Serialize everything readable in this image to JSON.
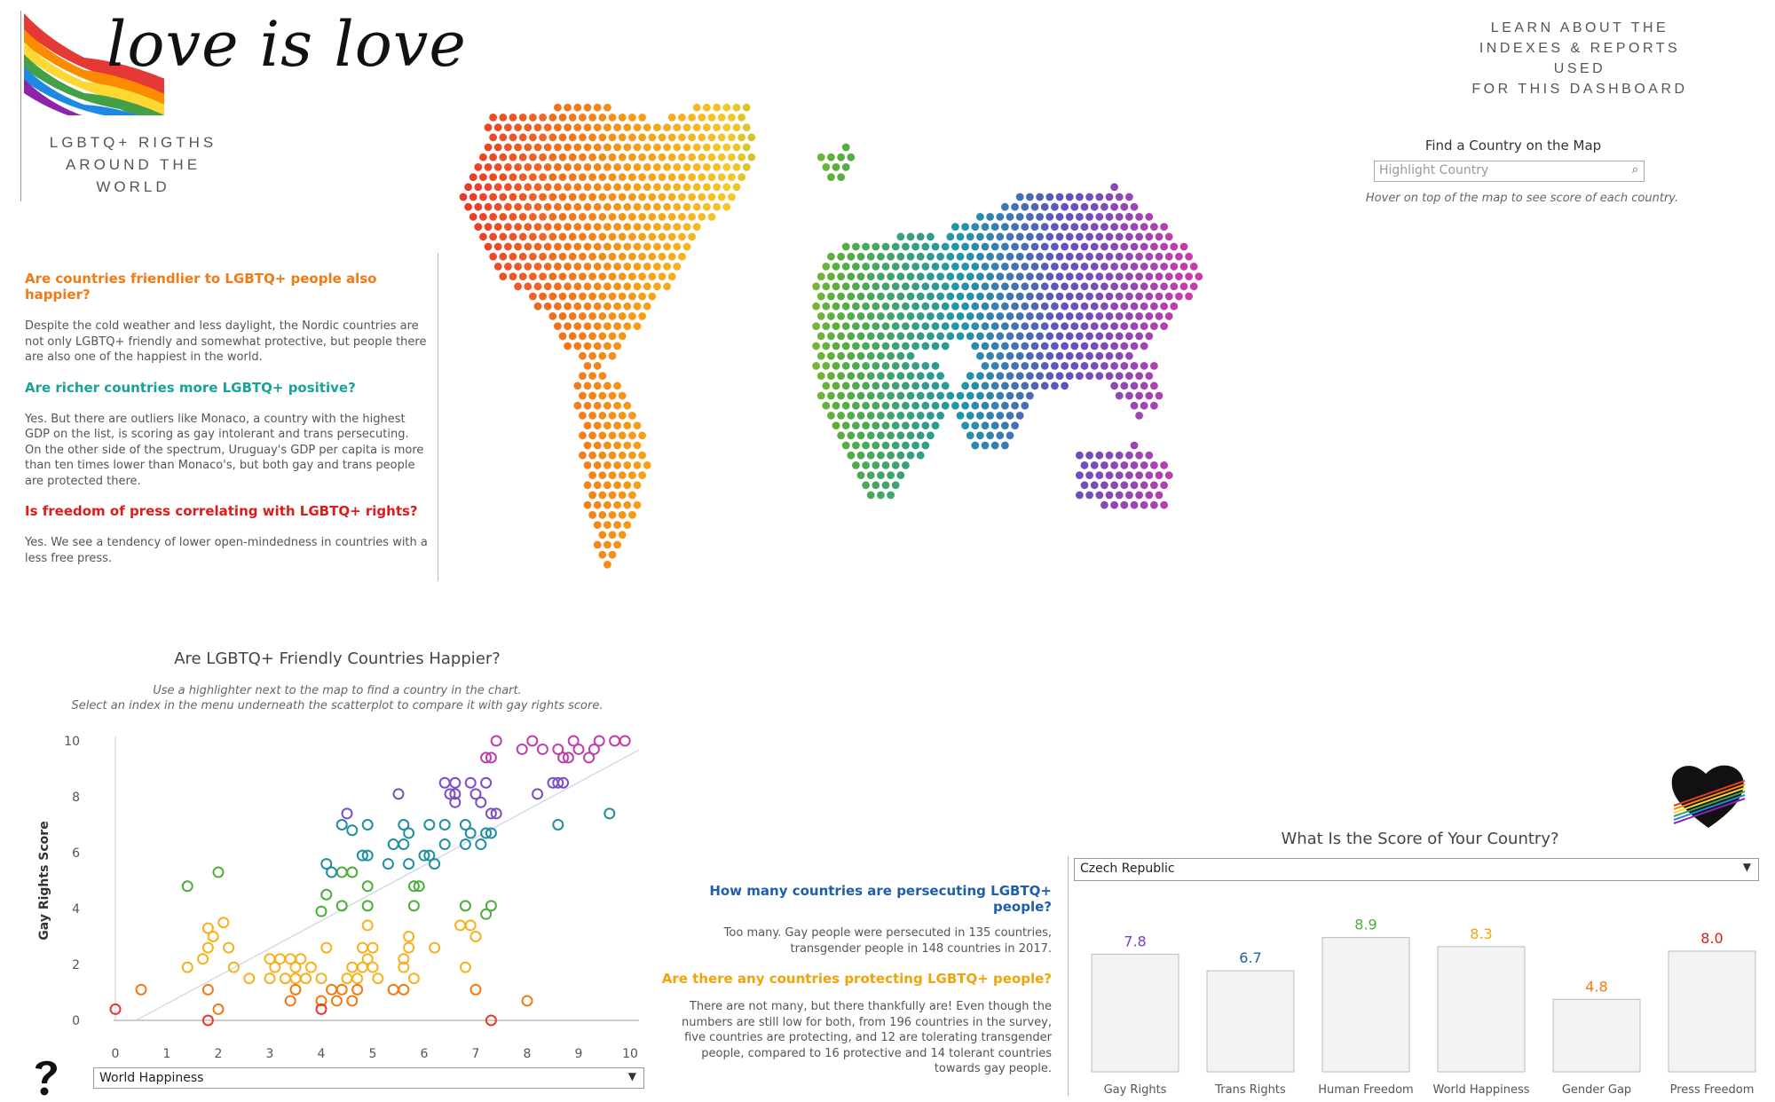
{
  "header": {
    "brand_title": "love is love",
    "subtitle_line1": "LGBTQ+ RIGTHS",
    "subtitle_line2": "AROUND THE WORLD",
    "learn_line1": "LEARN ABOUT THE",
    "learn_line2": "INDEXES & REPORTS USED",
    "learn_line3": "FOR THIS DASHBOARD"
  },
  "colors": {
    "orange": "#f07a14",
    "teal": "#18a39a",
    "red": "#dd1c1c",
    "blue": "#1f5ea8",
    "amber": "#f0a30a",
    "purple": "#7d3cc9"
  },
  "insights": {
    "q1": "Are countries friendlier to LGBTQ+ people also happier?",
    "p1": "Despite the cold weather and less daylight, the Nordic countries are not only LGBTQ+ friendly and somewhat protective, but people there are also one of the happiest in the world.",
    "q2": "Are richer countries more LGBTQ+ positive?",
    "p2": "Yes. But there are outliers like Monaco, a country with the highest GDP on the list, is scoring as gay intolerant and trans persecuting. On the other side of the spectrum, Uruguay's GDP per capita is more than ten times lower than Monaco's, but both gay and trans people are protected there.",
    "q3": "Is freedom of press correlating with LGBTQ+ rights?",
    "p3": "Yes. We see a tendency of lower open-mindedness in countries with a less free press."
  },
  "find_country": {
    "title": "Find a Country on the Map",
    "placeholder": "Highlight Country",
    "hint": "Hover on top of the map to see score of each country."
  },
  "scatter": {
    "title": "Are LGBTQ+ Friendly Countries Happier?",
    "note_line1": "Use a highlighter next to the map to find a country in the chart.",
    "note_line2": "Select an index in the menu underneath the scatterplot to compare it with gay rights score.",
    "selected_index": "World Happiness",
    "help_icon": "question-mark"
  },
  "persecution": {
    "q1": "How many countries are persecuting LGBTQ+ people?",
    "p1_line1": "Too many. Gay people were persecuted in 135 countries,",
    "p1_line2": "transgender people in 148 countries in 2017.",
    "q2": "Are there any countries protecting LGBTQ+ people?",
    "p2_line1": "There are not many, but there thankfully are! Even though the",
    "p2_line2": "numbers are still low for both, from 196 countries in the survey,",
    "p2_line3": "five countries are protecting, and 12 are tolerating transgender",
    "p2_line4": "people, compared to 16 protective and 14 tolerant countries",
    "p2_line5": "towards gay people."
  },
  "country_score": {
    "title": "What Is the Score of Your Country?",
    "selected_country": "Czech Republic"
  },
  "chart_data": [
    {
      "type": "scatter",
      "title": "Are LGBTQ+ Friendly Countries Happier?",
      "xlabel": "",
      "ylabel": "Gay Rights Score",
      "xlim": [
        0,
        10
      ],
      "ylim": [
        0,
        10
      ],
      "x_ticks": [
        "0",
        "1",
        "2",
        "3",
        "4",
        "5",
        "6",
        "7",
        "8",
        "9",
        "10"
      ],
      "y_ticks": [
        "0",
        "2",
        "4",
        "6",
        "8",
        "10"
      ],
      "trendline": [
        [
          0.4,
          0
        ],
        [
          10.6,
          10.1
        ]
      ],
      "points": [
        [
          0,
          0.4,
          "#e8392b"
        ],
        [
          0.5,
          1.1,
          "#f07a14"
        ],
        [
          1.8,
          0,
          "#e8392b"
        ],
        [
          7.3,
          0,
          "#e8392b"
        ],
        [
          1.4,
          4.8,
          "#4cae3a"
        ],
        [
          2.0,
          5.3,
          "#4cae3a"
        ],
        [
          1.4,
          1.9,
          "#f5b21c"
        ],
        [
          1.7,
          2.2,
          "#f5b21c"
        ],
        [
          1.8,
          2.6,
          "#f5b21c"
        ],
        [
          1.9,
          3.0,
          "#f5b21c"
        ],
        [
          1.8,
          3.3,
          "#f5b21c"
        ],
        [
          2.2,
          2.6,
          "#f5b21c"
        ],
        [
          2.1,
          3.5,
          "#f5b21c"
        ],
        [
          2.3,
          1.9,
          "#f5b21c"
        ],
        [
          2.6,
          1.5,
          "#f5b21c"
        ],
        [
          1.8,
          1.1,
          "#f07a14"
        ],
        [
          2.0,
          0.4,
          "#f07a14"
        ],
        [
          3.0,
          1.5,
          "#f5b21c"
        ],
        [
          3.1,
          1.9,
          "#f5b21c"
        ],
        [
          3.2,
          2.2,
          "#f5b21c"
        ],
        [
          3.0,
          2.2,
          "#f5b21c"
        ],
        [
          3.3,
          1.5,
          "#f5b21c"
        ],
        [
          3.4,
          2.2,
          "#f5b21c"
        ],
        [
          3.5,
          1.9,
          "#f5b21c"
        ],
        [
          3.6,
          2.2,
          "#f5b21c"
        ],
        [
          3.5,
          1.5,
          "#f5b21c"
        ],
        [
          3.7,
          1.5,
          "#f5b21c"
        ],
        [
          3.5,
          1.1,
          "#f07a14"
        ],
        [
          3.4,
          0.7,
          "#f07a14"
        ],
        [
          3.8,
          1.9,
          "#f5b21c"
        ],
        [
          4.0,
          1.5,
          "#f5b21c"
        ],
        [
          4.1,
          2.6,
          "#f5b21c"
        ],
        [
          4.2,
          1.1,
          "#f07a14"
        ],
        [
          4.0,
          0.7,
          "#f07a14"
        ],
        [
          4.0,
          0.4,
          "#e8392b"
        ],
        [
          4.3,
          0.7,
          "#f07a14"
        ],
        [
          4.4,
          1.1,
          "#f07a14"
        ],
        [
          4.5,
          1.5,
          "#f5b21c"
        ],
        [
          4.6,
          1.9,
          "#f5b21c"
        ],
        [
          4.7,
          1.5,
          "#f5b21c"
        ],
        [
          4.8,
          1.9,
          "#f5b21c"
        ],
        [
          4.9,
          2.2,
          "#f5b21c"
        ],
        [
          4.8,
          2.6,
          "#f5b21c"
        ],
        [
          5.0,
          2.6,
          "#f5b21c"
        ],
        [
          5.1,
          1.5,
          "#f5b21c"
        ],
        [
          5.0,
          1.9,
          "#f5b21c"
        ],
        [
          4.7,
          1.1,
          "#f07a14"
        ],
        [
          4.6,
          0.7,
          "#f07a14"
        ],
        [
          4.9,
          3.4,
          "#f5b21c"
        ],
        [
          4.1,
          4.5,
          "#4cae3a"
        ],
        [
          4.4,
          4.1,
          "#4cae3a"
        ],
        [
          4.0,
          3.9,
          "#4cae3a"
        ],
        [
          4.6,
          5.3,
          "#4cae3a"
        ],
        [
          4.4,
          5.3,
          "#4cae3a"
        ],
        [
          4.9,
          4.8,
          "#4cae3a"
        ],
        [
          4.9,
          4.1,
          "#4cae3a"
        ],
        [
          4.1,
          5.6,
          "#1e8fa0"
        ],
        [
          4.2,
          5.3,
          "#1e8fa0"
        ],
        [
          4.9,
          5.9,
          "#1e8fa0"
        ],
        [
          4.8,
          5.9,
          "#1e8fa0"
        ],
        [
          4.4,
          7.0,
          "#1e8fa0"
        ],
        [
          4.6,
          6.8,
          "#1e8fa0"
        ],
        [
          4.5,
          7.4,
          "#7d4fc4"
        ],
        [
          4.9,
          7.0,
          "#1e8fa0"
        ],
        [
          5.4,
          1.1,
          "#f07a14"
        ],
        [
          5.6,
          1.1,
          "#f07a14"
        ],
        [
          5.6,
          1.9,
          "#f5b21c"
        ],
        [
          5.6,
          2.2,
          "#f5b21c"
        ],
        [
          5.7,
          2.6,
          "#f5b21c"
        ],
        [
          5.8,
          1.5,
          "#f5b21c"
        ],
        [
          5.7,
          3.0,
          "#f5b21c"
        ],
        [
          5.8,
          4.1,
          "#4cae3a"
        ],
        [
          5.9,
          4.8,
          "#4cae3a"
        ],
        [
          5.8,
          4.8,
          "#4cae3a"
        ],
        [
          5.7,
          5.6,
          "#1e8fa0"
        ],
        [
          5.6,
          6.3,
          "#1e8fa0"
        ],
        [
          5.7,
          6.7,
          "#1e8fa0"
        ],
        [
          5.6,
          7.0,
          "#1e8fa0"
        ],
        [
          5.5,
          8.1,
          "#7d4fc4"
        ],
        [
          5.4,
          6.3,
          "#1e8fa0"
        ],
        [
          5.3,
          5.6,
          "#1e8fa0"
        ],
        [
          6.0,
          5.9,
          "#1e8fa0"
        ],
        [
          6.1,
          5.9,
          "#1e8fa0"
        ],
        [
          6.2,
          5.6,
          "#1e8fa0"
        ],
        [
          6.4,
          6.3,
          "#1e8fa0"
        ],
        [
          6.1,
          7.0,
          "#1e8fa0"
        ],
        [
          6.4,
          7.0,
          "#1e8fa0"
        ],
        [
          6.6,
          7.8,
          "#7d4fc4"
        ],
        [
          6.5,
          8.1,
          "#7d4fc4"
        ],
        [
          6.6,
          8.1,
          "#7d4fc4"
        ],
        [
          6.4,
          8.5,
          "#7d4fc4"
        ],
        [
          6.6,
          8.5,
          "#7d4fc4"
        ],
        [
          6.8,
          7.0,
          "#1e8fa0"
        ],
        [
          6.8,
          6.3,
          "#1e8fa0"
        ],
        [
          6.9,
          6.7,
          "#1e8fa0"
        ],
        [
          6.2,
          2.6,
          "#f5b21c"
        ],
        [
          6.7,
          3.4,
          "#f5b21c"
        ],
        [
          6.9,
          3.4,
          "#f5b21c"
        ],
        [
          7.0,
          3.0,
          "#f5b21c"
        ],
        [
          6.8,
          4.1,
          "#4cae3a"
        ],
        [
          7.3,
          4.1,
          "#4cae3a"
        ],
        [
          7.2,
          3.8,
          "#4cae3a"
        ],
        [
          6.8,
          1.9,
          "#f5b21c"
        ],
        [
          7.0,
          1.1,
          "#f07a14"
        ],
        [
          8.0,
          0.7,
          "#f07a14"
        ],
        [
          6.9,
          8.5,
          "#7d4fc4"
        ],
        [
          7.0,
          8.1,
          "#7d4fc4"
        ],
        [
          7.2,
          8.5,
          "#7d4fc4"
        ],
        [
          7.1,
          7.8,
          "#7d4fc4"
        ],
        [
          7.3,
          7.4,
          "#7d4fc4"
        ],
        [
          7.4,
          7.4,
          "#7d4fc4"
        ],
        [
          7.2,
          6.7,
          "#1e8fa0"
        ],
        [
          7.3,
          6.7,
          "#1e8fa0"
        ],
        [
          7.1,
          6.3,
          "#1e8fa0"
        ],
        [
          7.3,
          9.4,
          "#c13fa9"
        ],
        [
          7.2,
          9.4,
          "#c13fa9"
        ],
        [
          7.4,
          10.0,
          "#c13fa9"
        ],
        [
          7.9,
          9.7,
          "#c13fa9"
        ],
        [
          8.1,
          10.0,
          "#c13fa9"
        ],
        [
          8.3,
          9.7,
          "#c13fa9"
        ],
        [
          8.2,
          8.1,
          "#7d4fc4"
        ],
        [
          8.5,
          8.5,
          "#7d4fc4"
        ],
        [
          8.6,
          8.5,
          "#7d4fc4"
        ],
        [
          8.7,
          8.5,
          "#7d4fc4"
        ],
        [
          8.6,
          7.0,
          "#1e8fa0"
        ],
        [
          8.6,
          9.7,
          "#c13fa9"
        ],
        [
          8.7,
          9.4,
          "#c13fa9"
        ],
        [
          8.8,
          9.4,
          "#c13fa9"
        ],
        [
          8.9,
          10.0,
          "#c13fa9"
        ],
        [
          9.0,
          9.7,
          "#c13fa9"
        ],
        [
          9.2,
          9.4,
          "#c13fa9"
        ],
        [
          9.3,
          9.7,
          "#c13fa9"
        ],
        [
          9.4,
          10.0,
          "#c13fa9"
        ],
        [
          9.6,
          7.4,
          "#1e8fa0"
        ],
        [
          9.7,
          10.0,
          "#c13fa9"
        ],
        [
          9.9,
          10.0,
          "#c13fa9"
        ]
      ]
    },
    {
      "type": "bar",
      "title": "What Is the Score of Your Country?",
      "categories": [
        "Gay Rights",
        "Trans Rights",
        "Human Freedom",
        "World Happiness",
        "Gender Gap",
        "Press Freedom"
      ],
      "values": [
        7.8,
        6.7,
        8.9,
        8.3,
        4.8,
        8.0
      ],
      "value_labels": [
        "7.8",
        "6.7",
        "8.9",
        "8.3",
        "4.8",
        "8.0"
      ],
      "value_colors": [
        "#7d3cc9",
        "#1f5ea8",
        "#4cae3a",
        "#f0a30a",
        "#f07a14",
        "#dd1c1c"
      ],
      "ylim": [
        0,
        10
      ],
      "bar_fill": "#f3f3f3"
    }
  ]
}
